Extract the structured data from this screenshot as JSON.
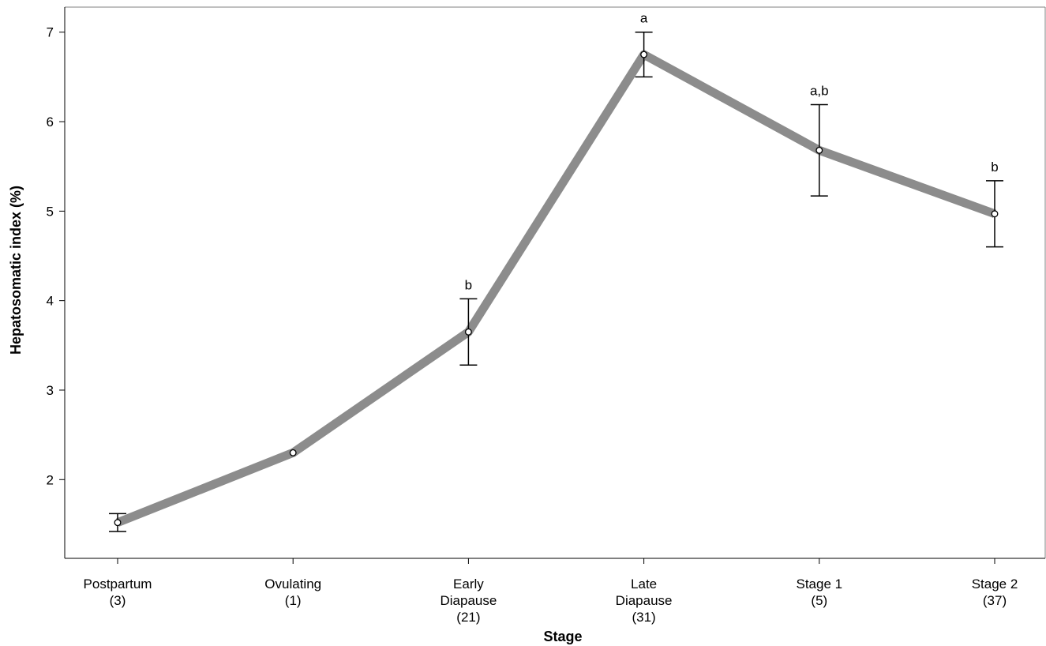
{
  "chart_data": {
    "type": "line",
    "title": "",
    "xlabel": "Stage",
    "ylabel": "Hepatosomatic index (%)",
    "ylim": [
      1.12,
      7.28
    ],
    "yticks": [
      2,
      3,
      4,
      5,
      6,
      7
    ],
    "grid": false,
    "categories": [
      {
        "name": "Postpartum",
        "n": "(3)"
      },
      {
        "name": "Ovulating",
        "n": "(1)"
      },
      {
        "name": "Early\nDiapause",
        "n": "(21)"
      },
      {
        "name": "Late\nDiapause",
        "n": "(31)"
      },
      {
        "name": "Stage 1",
        "n": "(5)"
      },
      {
        "name": "Stage 2",
        "n": "(37)"
      }
    ],
    "series": [
      {
        "values": [
          1.52,
          2.3,
          3.65,
          6.75,
          5.68,
          4.97
        ],
        "error_low": [
          1.42,
          null,
          3.28,
          6.5,
          5.17,
          4.6
        ],
        "error_high": [
          1.62,
          null,
          4.02,
          7.0,
          6.19,
          5.34
        ],
        "significance": [
          "",
          "",
          "b",
          "a",
          "a,b",
          "b"
        ]
      }
    ],
    "colors": {
      "line": "#8c8c8c",
      "marker_fill": "#ffffff",
      "marker_stroke": "#000000",
      "error_bar": "#000000"
    }
  }
}
